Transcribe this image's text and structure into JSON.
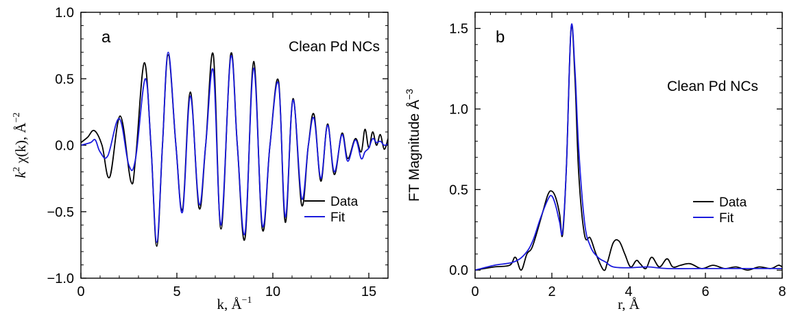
{
  "chart_data": [
    {
      "panel": "a",
      "type": "line",
      "annotation": "Clean Pd NCs",
      "xlabel": "k, Å",
      "xlabel_superscript": "−1",
      "ylabel_prefix": "k",
      "ylabel_prefix_superscript": "2",
      "ylabel_main": " χ(k), Å",
      "ylabel_superscript": "−2",
      "xlim": [
        0,
        16
      ],
      "ylim": [
        -1.0,
        1.0
      ],
      "xticks": [
        0,
        5,
        10,
        15
      ],
      "xtick_labels": [
        "0",
        "5",
        "10",
        "15"
      ],
      "yticks": [
        -1.0,
        -0.5,
        0.0,
        0.5,
        1.0
      ],
      "ytick_labels": [
        "−1.0",
        "−0.5",
        "0.0",
        "0.5",
        "1.0"
      ],
      "legend_position": "lower-right",
      "colors": {
        "Data": "#000000",
        "Fit": "#1a1adc"
      },
      "series": [
        {
          "name": "Data",
          "x": [
            0,
            0.35,
            0.7,
            1.1,
            1.5,
            2.05,
            2.6,
            2.85,
            3.3,
            3.65,
            3.95,
            4.25,
            4.55,
            4.95,
            5.3,
            5.7,
            6.15,
            6.5,
            6.9,
            7.3,
            7.8,
            8.15,
            8.55,
            9.0,
            9.45,
            9.85,
            10.3,
            10.65,
            11.05,
            11.5,
            11.85,
            12.15,
            12.5,
            12.85,
            13.2,
            13.6,
            13.9,
            14.3,
            14.6,
            14.8,
            15.0,
            15.2,
            15.4,
            15.6,
            15.8,
            16.0
          ],
          "y": [
            0.02,
            0.06,
            0.11,
            0.0,
            -0.24,
            0.22,
            -0.27,
            -0.1,
            0.62,
            0.0,
            -0.76,
            0.0,
            0.68,
            0.0,
            -0.48,
            0.4,
            -0.47,
            0.0,
            0.68,
            -0.63,
            0.68,
            0.0,
            -0.7,
            0.63,
            -0.63,
            0.0,
            0.48,
            -0.58,
            0.35,
            -0.45,
            0.0,
            0.23,
            -0.27,
            0.16,
            -0.22,
            0.09,
            -0.1,
            0.05,
            -0.05,
            0.12,
            -0.02,
            0.1,
            0.0,
            0.08,
            -0.03,
            0.05
          ]
        },
        {
          "name": "Fit",
          "x": [
            0,
            0.5,
            0.75,
            1.0,
            1.4,
            2.0,
            2.5,
            2.85,
            3.35,
            3.65,
            3.95,
            4.25,
            4.55,
            4.95,
            5.3,
            5.7,
            6.15,
            6.5,
            6.9,
            7.3,
            7.8,
            8.15,
            8.55,
            9.0,
            9.45,
            9.85,
            10.3,
            10.65,
            11.05,
            11.5,
            11.85,
            12.15,
            12.5,
            12.85,
            13.2,
            13.6,
            13.9,
            14.3,
            14.6,
            14.8,
            15.0,
            15.2,
            15.4,
            15.6,
            15.8,
            16.0
          ],
          "y": [
            0.0,
            0.02,
            0.04,
            -0.05,
            -0.08,
            0.2,
            -0.15,
            -0.1,
            0.5,
            0.0,
            -0.73,
            0.0,
            0.7,
            0.0,
            -0.5,
            0.37,
            -0.44,
            0.0,
            0.56,
            -0.6,
            0.66,
            0.0,
            -0.66,
            0.58,
            -0.6,
            0.0,
            0.46,
            -0.54,
            0.34,
            -0.4,
            0.0,
            0.2,
            -0.25,
            0.15,
            -0.2,
            0.08,
            -0.12,
            0.04,
            -0.1,
            -0.05,
            -0.02,
            0.05,
            0.02,
            0.03,
            0.0,
            0.01
          ]
        }
      ]
    },
    {
      "panel": "b",
      "type": "line",
      "annotation": "Clean Pd NCs",
      "xlabel": "r, Å",
      "ylabel_main": "FT Magnitude Å",
      "ylabel_superscript": "−3",
      "xlim": [
        0,
        8
      ],
      "ylim": [
        -0.05,
        1.6
      ],
      "xticks": [
        0,
        2,
        4,
        6,
        8
      ],
      "xtick_labels": [
        "0",
        "2",
        "4",
        "6",
        "8"
      ],
      "yticks": [
        0.0,
        0.5,
        1.0,
        1.5
      ],
      "ytick_labels": [
        "0.0",
        "0.5",
        "1.0",
        "1.5"
      ],
      "legend_position": "lower-right",
      "colors": {
        "Data": "#000000",
        "Fit": "#1a1adc"
      },
      "series": [
        {
          "name": "Data",
          "x": [
            0,
            0.5,
            0.9,
            1.05,
            1.2,
            1.35,
            1.5,
            1.75,
            1.9,
            2.0,
            2.1,
            2.2,
            2.28,
            2.38,
            2.5,
            2.6,
            2.7,
            2.85,
            3.0,
            3.15,
            3.35,
            3.45,
            3.6,
            3.75,
            3.9,
            4.05,
            4.2,
            4.3,
            4.45,
            4.6,
            4.8,
            5.0,
            5.15,
            5.35,
            5.6,
            5.9,
            6.2,
            6.5,
            6.8,
            7.1,
            7.4,
            7.7,
            7.9,
            8.0
          ],
          "y": [
            0.0,
            0.02,
            0.03,
            0.08,
            0.0,
            0.1,
            0.15,
            0.35,
            0.47,
            0.49,
            0.45,
            0.35,
            0.22,
            0.65,
            1.5,
            1.2,
            0.6,
            0.22,
            0.2,
            0.1,
            0.0,
            0.05,
            0.17,
            0.18,
            0.1,
            0.02,
            0.06,
            0.04,
            0.01,
            0.08,
            0.02,
            0.07,
            0.02,
            0.03,
            0.04,
            0.01,
            0.03,
            0.01,
            0.02,
            0.0,
            0.02,
            0.01,
            0.03,
            0.02
          ]
        },
        {
          "name": "Fit",
          "x": [
            0,
            0.5,
            1.0,
            1.3,
            1.5,
            1.7,
            1.9,
            2.0,
            2.1,
            2.2,
            2.28,
            2.38,
            2.5,
            2.6,
            2.7,
            2.85,
            3.0,
            3.2,
            3.4,
            3.6,
            4.0,
            4.5,
            5.0,
            6.0,
            7.0,
            8.0
          ],
          "y": [
            0.0,
            0.03,
            0.05,
            0.1,
            0.18,
            0.32,
            0.44,
            0.46,
            0.4,
            0.3,
            0.24,
            0.65,
            1.5,
            1.25,
            0.75,
            0.3,
            0.15,
            0.08,
            0.05,
            0.02,
            0.015,
            0.02,
            0.01,
            0.01,
            0.01,
            0.01
          ]
        }
      ]
    }
  ]
}
